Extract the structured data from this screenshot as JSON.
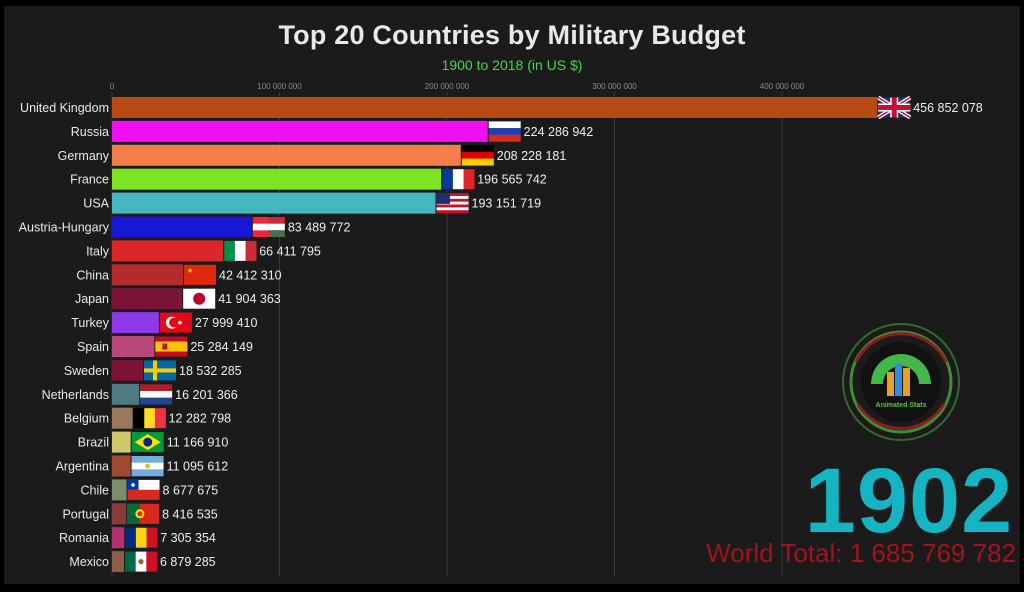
{
  "chart_data": {
    "type": "bar",
    "orientation": "horizontal",
    "title": "Top 20 Countries by Military Budget",
    "subtitle": "1900 to 2018 (in US $)",
    "xlim": [
      0,
      460000000
    ],
    "xticks": [
      0,
      100000000,
      200000000,
      300000000,
      400000000
    ],
    "xtick_labels": [
      "0",
      "100 000 000",
      "200 000 000",
      "300 000 000",
      "400 000 000"
    ],
    "grid": true,
    "categories": [
      "United Kingdom",
      "Russia",
      "Germany",
      "France",
      "USA",
      "Austria-Hungary",
      "Italy",
      "China",
      "Japan",
      "Turkey",
      "Spain",
      "Sweden",
      "Netherlands",
      "Belgium",
      "Brazil",
      "Argentina",
      "Chile",
      "Portugal",
      "Romania",
      "Mexico"
    ],
    "values": [
      456852078,
      224286942,
      208228181,
      196565742,
      193151719,
      83489772,
      66411795,
      42412310,
      41904363,
      27999410,
      25284149,
      18532285,
      16201366,
      12282798,
      11166910,
      11095612,
      8677675,
      8416535,
      7305354,
      6879285
    ],
    "value_labels": [
      "456 852 078",
      "224 286 942",
      "208 228 181",
      "196 565 742",
      "193 151 719",
      "83 489 772",
      "66 411 795",
      "42 412 310",
      "41 904 363",
      "27 999 410",
      "25 284 149",
      "18 532 285",
      "16 201 366",
      "12 282 798",
      "11 166 910",
      "11 095 612",
      "8 677 675",
      "8 416 535",
      "7 305 354",
      "6 879 285"
    ],
    "colors": [
      "#b84a14",
      "#f10ef0",
      "#f47e4a",
      "#7ee323",
      "#45b7c1",
      "#1818d4",
      "#d9272c",
      "#b52a2a",
      "#7a1438",
      "#8e39ea",
      "#b9487a",
      "#7c1236",
      "#4f7a80",
      "#9a785e",
      "#cfc56a",
      "#a14a33",
      "#7a8e6e",
      "#8a3a3a",
      "#b53070",
      "#8a6048"
    ],
    "flags": [
      "uk-flag",
      "russia-flag",
      "germany-flag",
      "france-flag",
      "usa-flag",
      "austria-hungary-flag",
      "italy-flag",
      "china-flag",
      "japan-flag",
      "turkey-flag",
      "spain-flag",
      "sweden-flag",
      "netherlands-flag",
      "belgium-flag",
      "brazil-flag",
      "argentina-flag",
      "chile-flag",
      "portugal-flag",
      "romania-flag",
      "mexico-flag"
    ]
  },
  "year": "1902",
  "world_total": "World Total: 1 685 769 782",
  "logo": {
    "text": "Animated Stats",
    "icon": "animated-stats-logo-icon"
  }
}
